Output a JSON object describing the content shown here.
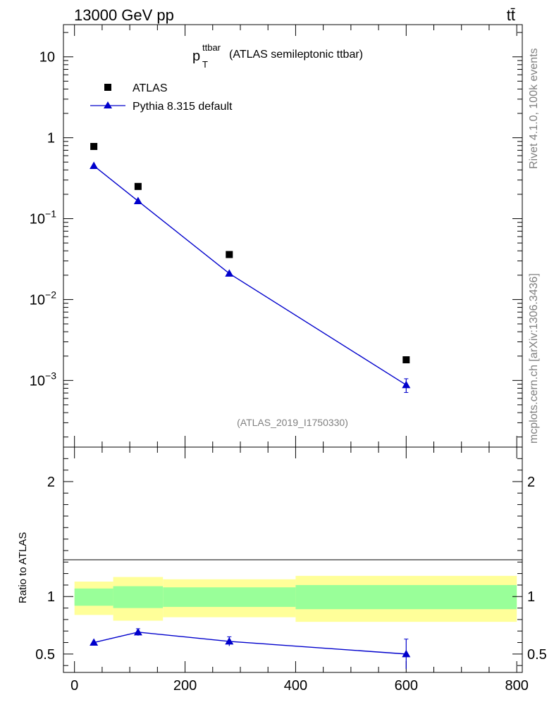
{
  "header": {
    "left_label": "13000 GeV pp",
    "right_label": "tt̄"
  },
  "side_labels": {
    "rivet": "Rivet 4.1.0,  100k events",
    "mcplots": "mcplots.cern.ch [arXiv:1306.3436]"
  },
  "colors": {
    "mc": "#0000cc",
    "band_inner": "#99ff99",
    "band_outer": "#ffff99",
    "data": "#000000",
    "watermark": "#808080"
  },
  "chart_data": [
    {
      "type": "scatter",
      "panel": "main",
      "title_main": "p",
      "title_sup": "ttbar",
      "title_sub": "T",
      "title_rest": "(ATLAS semileptonic ttbar)",
      "watermark": "(ATLAS_2019_I1750330)",
      "yscale": "log",
      "xlim": [
        -20,
        810
      ],
      "ylim": [
        0.00015,
        25
      ],
      "y_ticks": [
        {
          "value": 10,
          "base": "10",
          "exp": ""
        },
        {
          "value": 1,
          "base": "1",
          "exp": ""
        },
        {
          "value": 0.1,
          "base": "10",
          "exp": "−1"
        },
        {
          "value": 0.01,
          "base": "10",
          "exp": "−2"
        },
        {
          "value": 0.001,
          "base": "10",
          "exp": "−3"
        }
      ],
      "legend": [
        {
          "name": "ATLAS",
          "marker": "square"
        },
        {
          "name": "Pythia 8.315 default",
          "marker": "triangle-line"
        }
      ],
      "series": [
        {
          "name": "ATLAS",
          "x": [
            35,
            115,
            280,
            600
          ],
          "y": [
            0.78,
            0.25,
            0.036,
            0.0018
          ]
        },
        {
          "name": "Pythia 8.315 default",
          "x": [
            35,
            115,
            280,
            600
          ],
          "y": [
            0.45,
            0.165,
            0.021,
            0.00088
          ],
          "yerr": [
            0.0,
            0.0,
            0.0,
            0.00017
          ]
        }
      ]
    },
    {
      "type": "line",
      "panel": "ratio",
      "ylabel": "Ratio to ATLAS",
      "xlabel": "",
      "xlim": [
        -20,
        810
      ],
      "ylim": [
        0.34,
        2.3
      ],
      "x_ticks": [
        0,
        200,
        400,
        600,
        800
      ],
      "y_ticks": [
        0.5,
        1,
        2
      ],
      "bands": [
        {
          "x0": 0,
          "x1": 70,
          "inner": [
            0.92,
            1.07
          ],
          "outer": [
            0.84,
            1.13
          ]
        },
        {
          "x0": 70,
          "x1": 160,
          "inner": [
            0.9,
            1.09
          ],
          "outer": [
            0.79,
            1.17
          ]
        },
        {
          "x0": 160,
          "x1": 400,
          "inner": [
            0.91,
            1.08
          ],
          "outer": [
            0.82,
            1.15
          ]
        },
        {
          "x0": 400,
          "x1": 800,
          "inner": [
            0.89,
            1.1
          ],
          "outer": [
            0.78,
            1.18
          ]
        }
      ],
      "series": [
        {
          "name": "Pythia 8.315 default",
          "x": [
            35,
            115,
            280,
            600
          ],
          "y": [
            0.6,
            0.69,
            0.61,
            0.5
          ],
          "yerr": [
            0.0,
            0.03,
            0.04,
            0.13
          ]
        }
      ]
    }
  ]
}
